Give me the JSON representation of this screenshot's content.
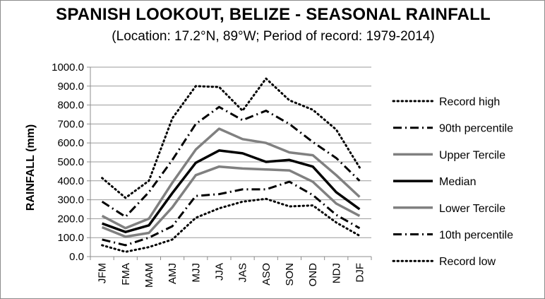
{
  "chart_data": {
    "type": "line",
    "title": "SPANISH LOOKOUT, BELIZE - SEASONAL RAINFALL",
    "subtitle": "(Location: 17.2°N, 89°W; Period of record: 1979-2014)",
    "xlabel": "",
    "ylabel": "RAINFALL (mm)",
    "ylim": [
      0,
      1000
    ],
    "ytick_values": [
      0,
      100,
      200,
      300,
      400,
      500,
      600,
      700,
      800,
      900,
      1000
    ],
    "ytick_labels": [
      "0.0",
      "100.0",
      "200.0",
      "300.0",
      "400.0",
      "500.0",
      "600.0",
      "700.0",
      "800.0",
      "900.0",
      "1000.0"
    ],
    "grid": true,
    "legend_position": "right",
    "categories": [
      "JFM",
      "FMA",
      "MAM",
      "AMJ",
      "MJJ",
      "JJA",
      "JAS",
      "ASO",
      "SON",
      "OND",
      "NDJ",
      "DJF"
    ],
    "series": [
      {
        "name": "Record high",
        "color": "#000000",
        "style": "dotted",
        "width": 3,
        "values": [
          415,
          310,
          400,
          730,
          900,
          895,
          770,
          940,
          825,
          775,
          670,
          470
        ]
      },
      {
        "name": "90th percentile",
        "color": "#000000",
        "style": "dashdot",
        "width": 3,
        "values": [
          290,
          210,
          340,
          510,
          700,
          790,
          720,
          770,
          700,
          605,
          520,
          400
        ]
      },
      {
        "name": "Upper Tercile",
        "color": "#808080",
        "style": "solid",
        "width": 3.5,
        "values": [
          215,
          150,
          200,
          390,
          565,
          675,
          620,
          600,
          550,
          535,
          430,
          315
        ]
      },
      {
        "name": "Median",
        "color": "#000000",
        "style": "solid",
        "width": 3.5,
        "values": [
          175,
          130,
          165,
          335,
          495,
          560,
          545,
          500,
          510,
          475,
          340,
          250
        ]
      },
      {
        "name": "Lower Tercile",
        "color": "#808080",
        "style": "solid",
        "width": 3.5,
        "values": [
          155,
          105,
          125,
          260,
          430,
          475,
          465,
          460,
          455,
          395,
          280,
          215
        ]
      },
      {
        "name": "10th percentile",
        "color": "#000000",
        "style": "dashdot",
        "width": 3,
        "values": [
          90,
          60,
          100,
          160,
          320,
          330,
          355,
          355,
          395,
          325,
          220,
          150
        ]
      },
      {
        "name": "Record low",
        "color": "#000000",
        "style": "dotted",
        "width": 3,
        "values": [
          60,
          25,
          50,
          90,
          205,
          255,
          290,
          305,
          265,
          270,
          180,
          110
        ]
      }
    ]
  }
}
